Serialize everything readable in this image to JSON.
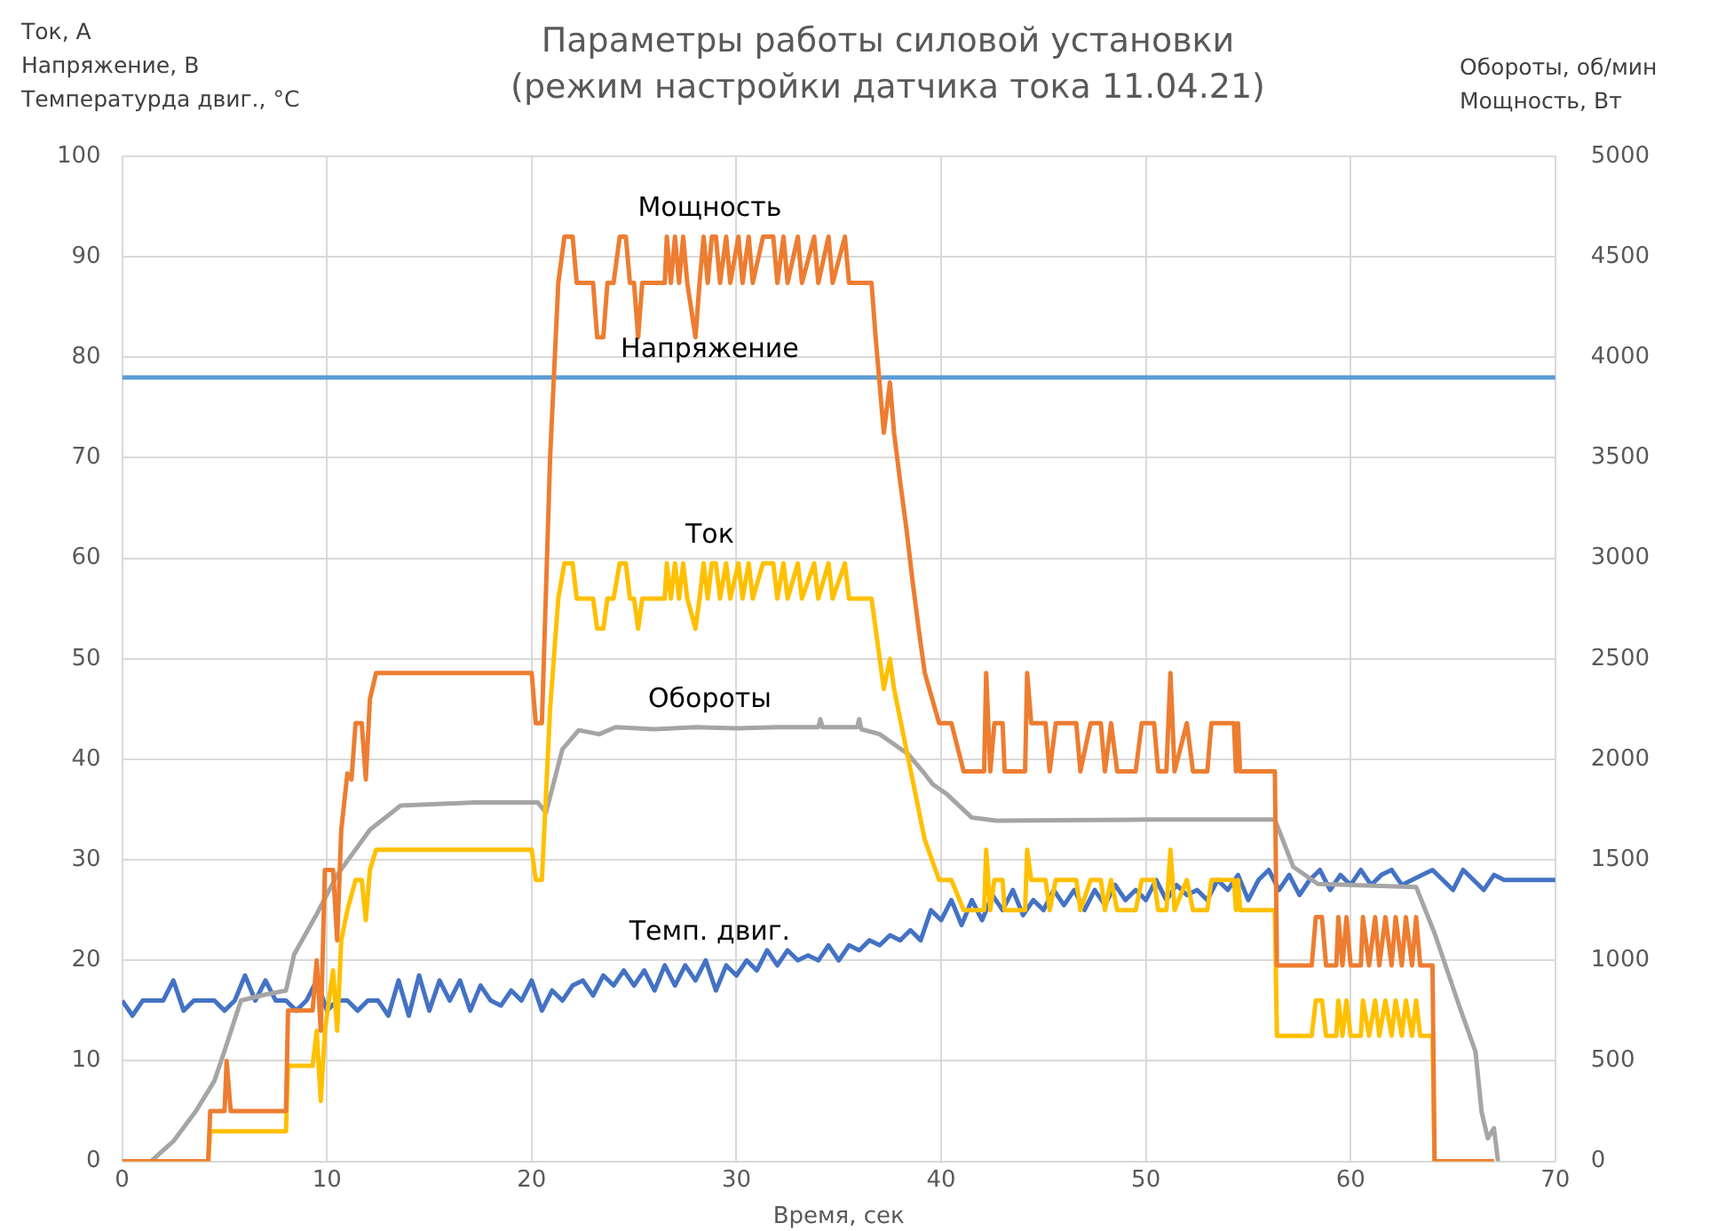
{
  "chart_data": {
    "type": "line",
    "title": "Параметры работы силовой установки",
    "subtitle": "(режим настройки датчика тока 11.04.21)",
    "ylabel": "Ток, А\nНапряжение, В\nТемпературда двиг., °C",
    "y2label": "Обороты, об/мин\nМощность, Вт",
    "xlabel": "Время, сек",
    "xlim": [
      0,
      70
    ],
    "xticks": [
      0,
      10,
      20,
      30,
      40,
      50,
      60,
      70
    ],
    "ylim": [
      0,
      100
    ],
    "yticks": [
      0,
      10,
      20,
      30,
      40,
      50,
      60,
      70,
      80,
      90,
      100
    ],
    "y2lim": [
      0,
      5000
    ],
    "y2ticks": [
      0,
      500,
      1000,
      1500,
      2000,
      2500,
      3000,
      3500,
      4000,
      4500,
      5000
    ],
    "grid": true,
    "legend": false,
    "marker": "none",
    "line_style": "solid",
    "series": [
      {
        "name": "Мощность",
        "color": "#ed7d31",
        "axis": "y2",
        "x": [
          0,
          4.2,
          4.3,
          5.0,
          5.1,
          5.3,
          8.0,
          8.1,
          9.3,
          9.5,
          9.7,
          9.9,
          10.3,
          10.5,
          10.7,
          11.0,
          11.2,
          11.4,
          11.7,
          11.9,
          12.1,
          12.4,
          20.0,
          20.2,
          20.5,
          20.9,
          21.3,
          21.6,
          22.0,
          22.2,
          23.0,
          23.2,
          23.5,
          23.7,
          24.0,
          24.3,
          24.6,
          24.8,
          25.0,
          25.2,
          25.4,
          26.5,
          26.6,
          26.8,
          27.0,
          27.2,
          27.4,
          27.6,
          28.0,
          28.2,
          28.4,
          28.6,
          28.8,
          29.0,
          29.2,
          29.5,
          29.7,
          30.1,
          30.3,
          30.6,
          30.8,
          31.3,
          31.8,
          32.0,
          32.3,
          32.5,
          33.0,
          33.2,
          33.8,
          34.0,
          34.5,
          34.7,
          35.3,
          35.5,
          36.6,
          36.8,
          37.2,
          37.5,
          37.7,
          38.0,
          38.3,
          38.6,
          38.9,
          39.2,
          39.9,
          40.5,
          41.1,
          42.1,
          42.2,
          42.4,
          42.6,
          43.0,
          43.1,
          44.1,
          44.2,
          44.4,
          45.1,
          45.3,
          45.6,
          46.6,
          46.8,
          47.3,
          47.8,
          48.0,
          48.3,
          48.6,
          49.5,
          49.8,
          50.4,
          50.6,
          51.0,
          51.2,
          51.4,
          52.0,
          52.3,
          53.0,
          53.2,
          54.3,
          54.4,
          54.5,
          54.6,
          56.3,
          56.4,
          58.1,
          58.3,
          58.6,
          58.8,
          59.3,
          59.4,
          59.6,
          59.8,
          60.0,
          60.5,
          60.6,
          60.9,
          61.2,
          61.4,
          61.7,
          62.0,
          62.2,
          62.5,
          62.7,
          63.0,
          63.2,
          63.4,
          64.0,
          64.1,
          67.0
        ],
        "values": [
          0,
          0,
          250,
          250,
          500,
          250,
          250,
          750,
          750,
          1000,
          650,
          1450,
          1450,
          1100,
          1650,
          1930,
          1900,
          2180,
          2180,
          1900,
          2300,
          2430,
          2430,
          2180,
          2180,
          3500,
          4370,
          4600,
          4600,
          4370,
          4370,
          4100,
          4100,
          4370,
          4370,
          4600,
          4600,
          4370,
          4370,
          4100,
          4370,
          4370,
          4600,
          4370,
          4600,
          4370,
          4600,
          4370,
          4100,
          4370,
          4600,
          4370,
          4600,
          4600,
          4370,
          4600,
          4370,
          4600,
          4370,
          4600,
          4370,
          4600,
          4600,
          4370,
          4600,
          4370,
          4600,
          4370,
          4600,
          4370,
          4600,
          4370,
          4600,
          4370,
          4370,
          4100,
          3625,
          3875,
          3625,
          3380,
          3150,
          2890,
          2650,
          2430,
          2180,
          2180,
          1940,
          1940,
          2430,
          1940,
          2180,
          2180,
          1940,
          1940,
          2430,
          2180,
          2180,
          1940,
          2180,
          2180,
          1940,
          2180,
          2180,
          1940,
          2180,
          1940,
          1940,
          2180,
          2180,
          1940,
          1940,
          2430,
          1940,
          2180,
          1940,
          1940,
          2180,
          2180,
          1940,
          2180,
          1940,
          1940,
          975,
          975,
          1215,
          1215,
          975,
          975,
          1215,
          975,
          1215,
          975,
          975,
          1215,
          975,
          1215,
          975,
          1215,
          975,
          1215,
          975,
          1215,
          975,
          1215,
          975,
          975,
          0,
          0
        ]
      },
      {
        "name": "Напряжение",
        "color": "#5b9bd5",
        "x": [
          0,
          70
        ],
        "values": [
          78,
          78
        ]
      },
      {
        "name": "Ток",
        "color": "#ffc000",
        "x": [
          0,
          4.2,
          4.3,
          8.0,
          8.1,
          9.3,
          9.5,
          9.7,
          9.9,
          10.3,
          10.5,
          10.7,
          11.0,
          11.4,
          11.7,
          11.9,
          12.1,
          12.4,
          20.0,
          20.2,
          20.5,
          20.9,
          21.3,
          21.6,
          22.0,
          22.2,
          23.0,
          23.2,
          23.5,
          23.7,
          24.0,
          24.3,
          24.6,
          24.8,
          25.0,
          25.2,
          25.4,
          26.5,
          26.6,
          26.8,
          27.0,
          27.2,
          27.4,
          27.6,
          28.0,
          28.2,
          28.4,
          28.6,
          28.8,
          29.0,
          29.2,
          29.5,
          29.7,
          30.1,
          30.3,
          30.6,
          30.8,
          31.3,
          31.8,
          32.0,
          32.3,
          32.5,
          33.0,
          33.2,
          33.8,
          34.0,
          34.5,
          34.7,
          35.3,
          35.5,
          36.6,
          36.8,
          37.2,
          37.5,
          37.7,
          38.0,
          38.3,
          38.6,
          38.9,
          39.2,
          39.9,
          40.5,
          41.1,
          42.1,
          42.2,
          42.4,
          42.6,
          43.0,
          43.1,
          44.1,
          44.2,
          44.4,
          45.1,
          45.3,
          45.6,
          46.6,
          46.8,
          47.3,
          47.8,
          48.0,
          48.3,
          48.6,
          49.5,
          49.8,
          50.4,
          50.6,
          51.0,
          51.2,
          51.4,
          52.0,
          52.3,
          53.0,
          53.2,
          54.3,
          54.4,
          54.5,
          54.6,
          56.3,
          56.4,
          58.1,
          58.3,
          58.6,
          58.8,
          59.3,
          59.4,
          59.6,
          59.8,
          60.0,
          60.5,
          60.6,
          60.9,
          61.2,
          61.4,
          61.7,
          62.0,
          62.2,
          62.5,
          62.7,
          63.0,
          63.2,
          63.4,
          64.0,
          64.1,
          67.0
        ],
        "values": [
          0,
          0,
          3,
          3,
          9.5,
          9.5,
          13,
          6,
          13,
          19,
          13,
          22,
          25,
          28,
          28,
          24,
          29,
          31,
          31,
          28,
          28,
          45,
          56,
          59.5,
          59.5,
          56,
          56,
          53,
          53,
          56,
          56,
          59.5,
          59.5,
          56,
          56,
          53,
          56,
          56,
          59.5,
          56,
          59.5,
          56,
          59.5,
          56,
          53,
          56,
          59.5,
          56,
          59.5,
          59.5,
          56,
          59.5,
          56,
          59.5,
          56,
          59.5,
          56,
          59.5,
          59.5,
          56,
          59.5,
          56,
          59.5,
          56,
          59.5,
          56,
          59.5,
          56,
          59.5,
          56,
          56,
          53,
          47,
          50,
          47,
          44,
          41,
          38,
          35,
          32,
          28,
          28,
          25,
          25,
          31,
          25,
          28,
          28,
          25,
          25,
          31,
          28,
          28,
          25,
          28,
          28,
          25,
          28,
          28,
          25,
          28,
          25,
          25,
          28,
          28,
          25,
          25,
          31,
          25,
          28,
          25,
          25,
          28,
          28,
          25,
          28,
          25,
          25,
          12.5,
          12.5,
          16,
          16,
          12.5,
          12.5,
          16,
          12.5,
          16,
          12.5,
          12.5,
          16,
          12.5,
          16,
          12.5,
          16,
          12.5,
          16,
          12.5,
          16,
          12.5,
          16,
          12.5,
          12.5,
          0,
          0
        ]
      },
      {
        "name": "Обороты",
        "color": "#a5a5a5",
        "axis": "y2",
        "x": [
          1.4,
          2.5,
          3.6,
          4.5,
          5.0,
          5.8,
          7.0,
          8.0,
          8.4,
          9.5,
          10.5,
          12.1,
          13.6,
          17.2,
          20.3,
          20.7,
          21.5,
          22.3,
          23.3,
          24.1,
          26,
          28,
          30,
          32,
          34.0,
          34.1,
          34.2,
          35.9,
          36.0,
          36.1,
          37.0,
          38.4,
          39.1,
          39.6,
          40.3,
          41.5,
          42.7,
          50,
          56.3,
          57.2,
          58.4,
          63.2,
          64.1,
          65.3,
          66.1,
          66.4,
          66.7,
          67.0,
          67.2
        ],
        "values": [
          0,
          100,
          250,
          400,
          550,
          800,
          830,
          850,
          1030,
          1230,
          1425,
          1650,
          1770,
          1785,
          1785,
          1735,
          2050,
          2145,
          2125,
          2160,
          2150,
          2160,
          2155,
          2160,
          2160,
          2200,
          2160,
          2160,
          2200,
          2150,
          2125,
          2025,
          1940,
          1875,
          1825,
          1710,
          1695,
          1700,
          1700,
          1465,
          1380,
          1365,
          1135,
          775,
          545,
          245,
          115,
          165,
          0
        ]
      },
      {
        "name": "Темп. двиг.",
        "color": "#4472c4",
        "x": [
          0,
          0.5,
          1,
          1.5,
          2,
          2.5,
          3,
          3.5,
          4,
          4.5,
          5,
          5.5,
          6,
          6.5,
          7,
          7.5,
          8,
          8.5,
          9,
          9.5,
          10,
          10.5,
          11,
          11.5,
          12,
          12.5,
          13,
          13.5,
          14,
          14.5,
          15,
          15.5,
          16,
          16.5,
          17,
          17.5,
          18,
          18.5,
          19,
          19.5,
          20,
          20.5,
          21,
          21.5,
          22,
          22.5,
          23,
          23.5,
          24,
          24.5,
          25,
          25.5,
          26,
          26.5,
          27,
          27.5,
          28,
          28.5,
          29,
          29.5,
          30,
          30.5,
          31,
          31.5,
          32,
          32.5,
          33,
          33.5,
          34,
          34.5,
          35,
          35.5,
          36,
          36.5,
          37,
          37.5,
          38,
          38.5,
          39,
          39.5,
          40,
          40.5,
          41,
          41.5,
          42,
          42.5,
          43,
          43.5,
          44,
          44.5,
          45,
          45.5,
          46,
          46.5,
          47,
          47.5,
          48,
          48.5,
          49,
          49.5,
          50,
          50.5,
          51,
          51.5,
          52,
          52.5,
          53,
          53.5,
          54,
          54.5,
          55,
          55.5,
          56,
          56.5,
          57,
          57.5,
          58,
          58.5,
          59,
          59.5,
          60,
          60.5,
          61,
          61.5,
          62,
          62.5,
          63,
          63.5,
          64,
          64.5,
          65,
          65.5,
          66,
          66.5,
          67,
          67.5,
          70
        ],
        "values": [
          16,
          14.5,
          16,
          16,
          16,
          18,
          15,
          16,
          16,
          16,
          15,
          16,
          18.5,
          16,
          18,
          16,
          16,
          15,
          16,
          18,
          15,
          16,
          16,
          15,
          16,
          16,
          14.5,
          18,
          14.5,
          18.5,
          15,
          18,
          16,
          18,
          15,
          17.5,
          16,
          15.5,
          17,
          16,
          18,
          15,
          17,
          16,
          17.5,
          18,
          16.5,
          18.5,
          17.5,
          19,
          17.5,
          19,
          17,
          19.5,
          17.5,
          19.5,
          18,
          20,
          17,
          19.5,
          18.5,
          20,
          19,
          21,
          19.5,
          21,
          20,
          20.5,
          20,
          21.5,
          20,
          21.5,
          21,
          22,
          21.5,
          22.5,
          22,
          23,
          22,
          25,
          24,
          26,
          23.5,
          26,
          24,
          26.5,
          25,
          27,
          24.5,
          26,
          25,
          27,
          25.5,
          27,
          25,
          27,
          25.5,
          27.5,
          26,
          27,
          26,
          28,
          26,
          27.5,
          26.5,
          27,
          26,
          28,
          27,
          28.5,
          26,
          28,
          29,
          27,
          28.5,
          26.5,
          28,
          29,
          27,
          28.5,
          27.5,
          29,
          27.5,
          28.5,
          29,
          27.5,
          28,
          28.5,
          29,
          28,
          27,
          29,
          28,
          27,
          28.5,
          28,
          28
        ]
      }
    ]
  }
}
